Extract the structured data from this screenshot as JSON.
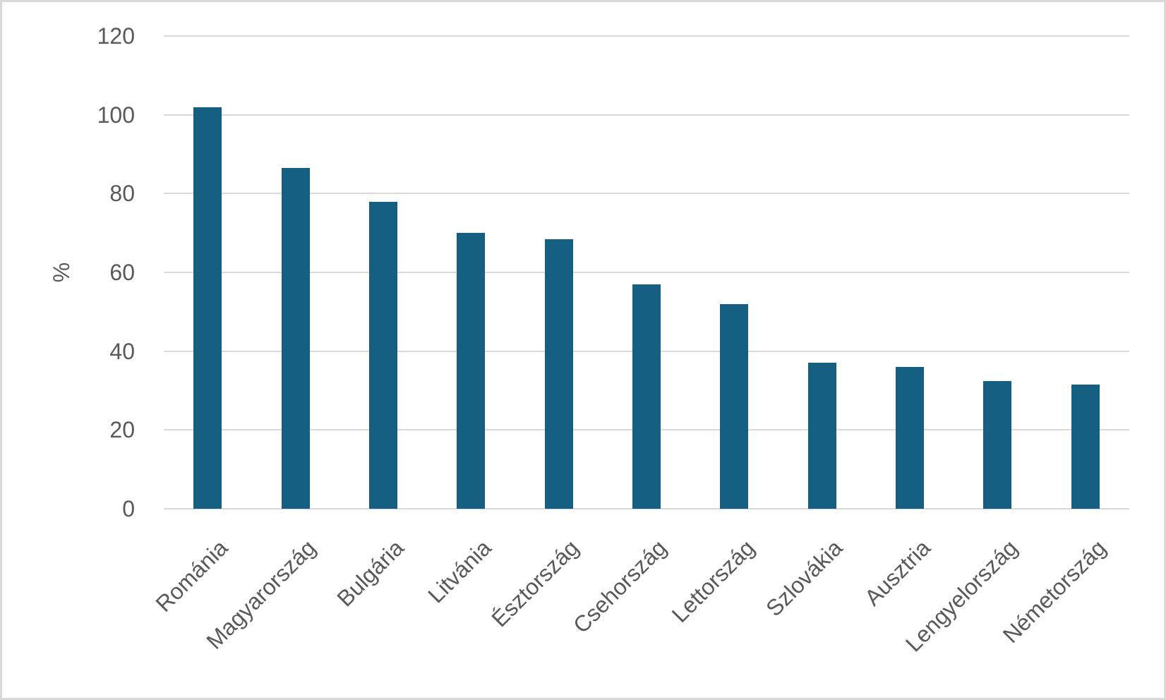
{
  "chart_data": {
    "type": "bar",
    "title": "",
    "categories": [
      "Románia",
      "Magyarország",
      "Bulgária",
      "Litvánia",
      "Észtország",
      "Csehország",
      "Lettország",
      "Szlovákia",
      "Ausztria",
      "Lengyelország",
      "Németország"
    ],
    "values": [
      102,
      86.5,
      78,
      70,
      68.5,
      57,
      52,
      37,
      36,
      32.5,
      31.5
    ],
    "xlabel": "",
    "ylabel": "%",
    "ylim": [
      0,
      120
    ],
    "yticks": [
      0,
      20,
      40,
      60,
      80,
      100,
      120
    ],
    "grid": "horizontal",
    "legend": "none",
    "x_tick_rotation_deg": -45,
    "colors": {
      "bar": "#156082",
      "gridline": "#D9D9D9",
      "axis_line": "#D9D9D9",
      "tick_text": "#595959",
      "background": "#FFFFFF",
      "frame_border": "#D9D9D9"
    }
  }
}
